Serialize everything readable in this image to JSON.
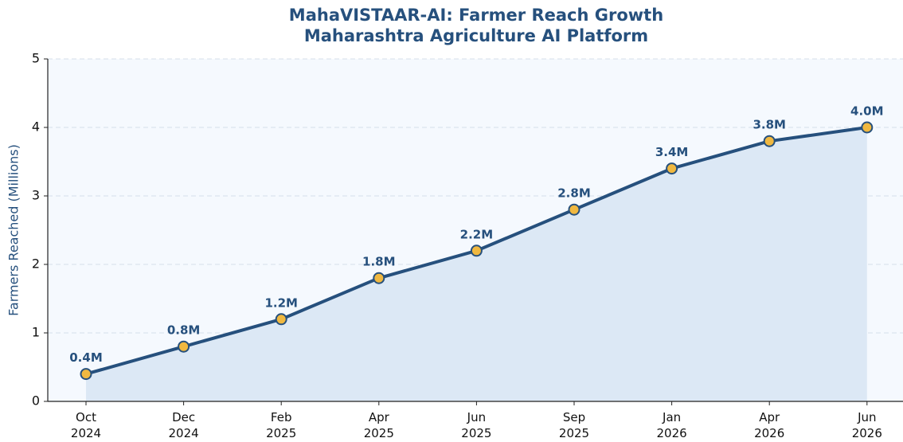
{
  "chart_data": {
    "type": "line",
    "title": "MahaVISTAAR-AI: Farmer Reach Growth",
    "subtitle": "Maharashtra Agriculture AI Platform",
    "ylabel": "Farmers Reached (Millions)",
    "categories": [
      "Oct\n2024",
      "Dec\n2024",
      "Feb\n2025",
      "Apr\n2025",
      "Jun\n2025",
      "Sep\n2025",
      "Jan\n2026",
      "Apr\n2026",
      "Jun\n2026"
    ],
    "series": [
      {
        "name": "Farmers Reached",
        "color": "#26507d",
        "values": [
          0.4,
          0.8,
          1.2,
          1.8,
          2.2,
          2.8,
          3.4,
          3.8,
          4.0
        ],
        "value_labels": [
          "0.4M",
          "0.8M",
          "1.2M",
          "1.8M",
          "2.2M",
          "2.8M",
          "3.4M",
          "3.8M",
          "4.0M"
        ]
      }
    ],
    "marker_color": "#f0b840",
    "area_color": "#dce8f5",
    "ylim": [
      0,
      5
    ],
    "yticks": [
      0,
      1,
      2,
      3,
      4,
      5
    ],
    "grid": true
  }
}
